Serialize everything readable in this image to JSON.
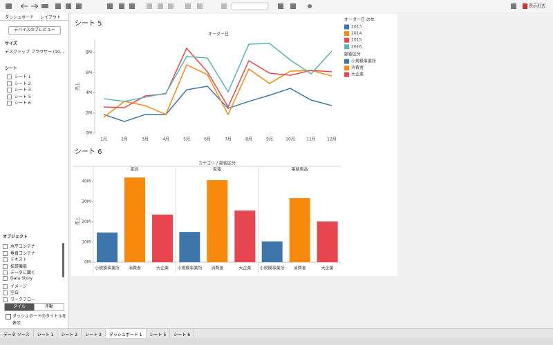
{
  "toolbar": {
    "format_button": "表示形式"
  },
  "sidebar": {
    "tabs": [
      "ダッシュボード",
      "レイアウト"
    ],
    "preview_button": "デバイスのプレビュー",
    "size_label": "サイズ",
    "size_value": "デスクトップ ブラウザー (10...",
    "sheets_label": "シート",
    "sheets": [
      "シート 1",
      "シート 2",
      "シート 3",
      "シート 5",
      "シート 6"
    ],
    "objects_label": "オブジェクト",
    "objects": [
      "水平コンテナ",
      "垂直コンテナ",
      "テキスト",
      "拡張機能",
      "データに聞く",
      "Data Story",
      "イメージ",
      "空白",
      "ワークフロー"
    ],
    "layout_buttons": [
      "タイル",
      "浮動"
    ],
    "show_title_checkbox": "ダッシュボードのタイトルを表示"
  },
  "chart_data": [
    {
      "type": "line",
      "title": "シート 5",
      "x_header": "オーダー日",
      "y_label": "売上",
      "categories": [
        "1月",
        "2月",
        "3月",
        "4月",
        "5月",
        "6月",
        "7月",
        "8月",
        "9月",
        "10月",
        "11月",
        "12月"
      ],
      "series": [
        {
          "name": "2013",
          "color": "#3e75ab",
          "values": [
            1850000,
            1160000,
            1850000,
            1850000,
            4300000,
            4650000,
            2460000,
            3150000,
            3760000,
            4440000,
            3280000,
            2730000
          ]
        },
        {
          "name": "2014",
          "color": "#f7890c",
          "values": [
            1570000,
            3150000,
            2730000,
            1850000,
            6770000,
            5810000,
            1850000,
            6360000,
            4920000,
            6150000,
            6220000,
            5670000
          ]
        },
        {
          "name": "2015",
          "color": "#e8474f",
          "values": [
            2600000,
            2530000,
            3690000,
            3900000,
            8410000,
            6090000,
            2600000,
            7180000,
            5950000,
            5740000,
            6220000,
            6090000
          ]
        },
        {
          "name": "2016",
          "color": "#5ab4b4",
          "values": [
            3420000,
            3150000,
            3560000,
            3970000,
            7590000,
            7450000,
            4100000,
            8820000,
            8890000,
            7250000,
            5880000,
            8140000
          ]
        }
      ],
      "ylim": [
        0,
        9300000
      ],
      "yticks": [
        {
          "value": 0,
          "label": "0M"
        },
        {
          "value": 2000000,
          "label": "2M"
        },
        {
          "value": 4000000,
          "label": "4M"
        },
        {
          "value": 6000000,
          "label": "6M"
        },
        {
          "value": 8000000,
          "label": "8M"
        }
      ],
      "legend_title": "オーダー日 の年"
    },
    {
      "type": "bar",
      "title": "シート 6",
      "x_header": "カテゴリ / 顧客区分",
      "y_label": "売上",
      "categories": [
        "小規模事業所",
        "消費者",
        "大企業"
      ],
      "colors": [
        "#3e75ab",
        "#f7890c",
        "#e8474f"
      ],
      "panels": [
        {
          "name": "家具",
          "values": [
            14700000,
            42000000,
            23600000
          ]
        },
        {
          "name": "家電",
          "values": [
            15000000,
            40700000,
            25600000
          ]
        },
        {
          "name": "事務用品",
          "values": [
            10300000,
            31800000,
            20200000
          ]
        }
      ],
      "ylim": [
        0,
        43800000
      ],
      "yticks": [
        {
          "value": 0,
          "label": "0M"
        },
        {
          "value": 10000000,
          "label": "10M"
        },
        {
          "value": 20000000,
          "label": "20M"
        },
        {
          "value": 30000000,
          "label": "30M"
        },
        {
          "value": 40000000,
          "label": "40M"
        }
      ],
      "legend_title": "顧客区分"
    }
  ],
  "tabs": [
    "データ ソース",
    "シート 1",
    "シート 2",
    "シート 3",
    "ダッシュボード 1",
    "シート 5",
    "シート 6"
  ]
}
